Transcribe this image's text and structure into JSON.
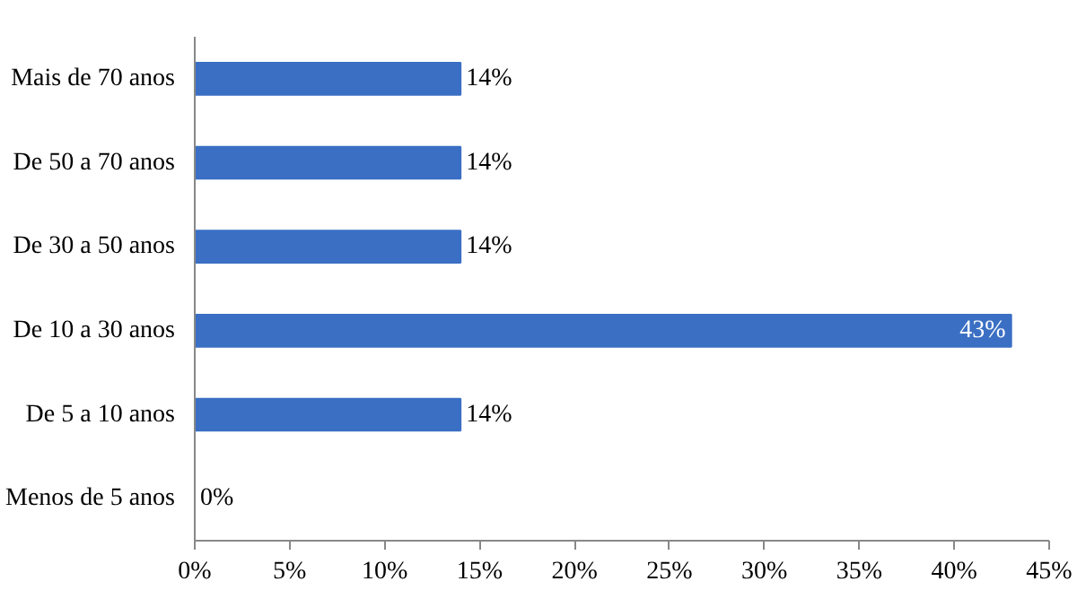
{
  "chart_data": {
    "type": "bar",
    "orientation": "horizontal",
    "categories": [
      "Mais de 70 anos",
      "De 50 a 70 anos",
      "De 30 a 50 anos",
      "De 10 a 30 anos",
      "De 5 a 10 anos",
      "Menos de 5 anos"
    ],
    "values": [
      14,
      14,
      14,
      43,
      14,
      0
    ],
    "value_labels": [
      "14%",
      "14%",
      "14%",
      "43%",
      "14%",
      "0%"
    ],
    "color": "#3a6fc4",
    "xlim": [
      0,
      45
    ],
    "xticks": [
      {
        "value": 0,
        "label": "0%"
      },
      {
        "value": 5,
        "label": "5%"
      },
      {
        "value": 10,
        "label": "10%"
      },
      {
        "value": 15,
        "label": "15%"
      },
      {
        "value": 20,
        "label": "20%"
      },
      {
        "value": 25,
        "label": "25%"
      },
      {
        "value": 30,
        "label": "30%"
      },
      {
        "value": 35,
        "label": "35%"
      },
      {
        "value": 40,
        "label": "40%"
      },
      {
        "value": 45,
        "label": "45%"
      }
    ],
    "grid": false
  }
}
